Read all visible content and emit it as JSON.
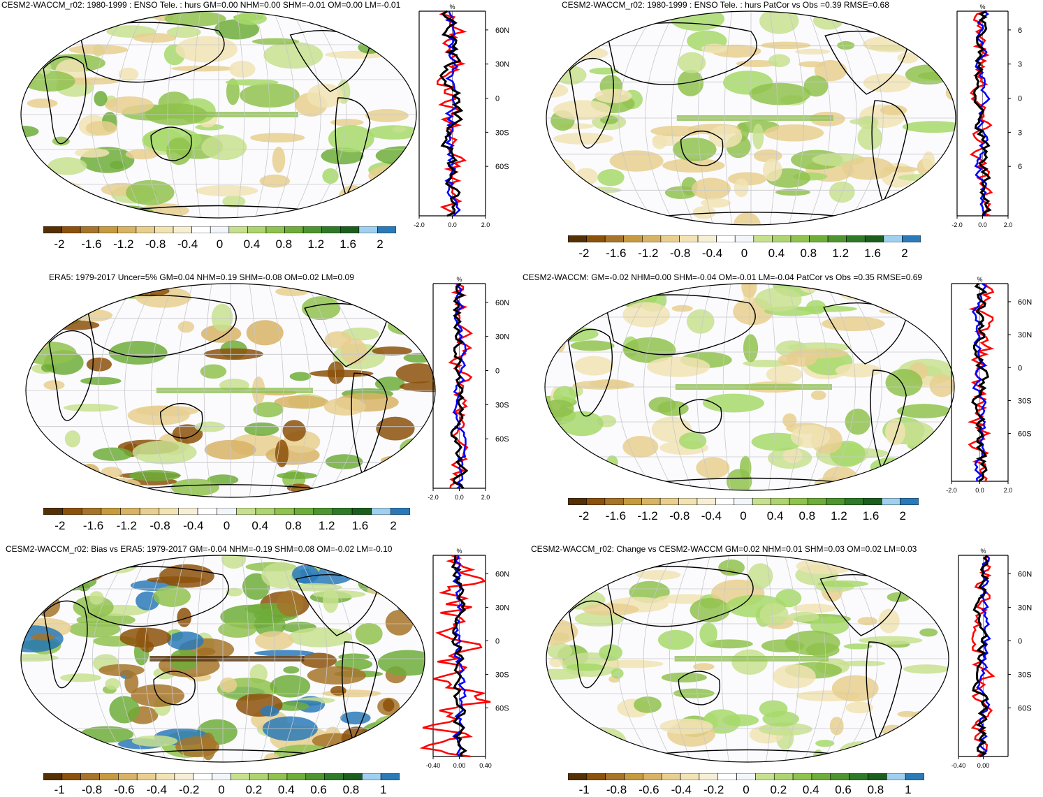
{
  "panels": [
    {
      "id": "p1",
      "title": "CESM2-WACCM_r02: 1980-1999 : ENSO Tele. : hurs GM=0.00 NHM=0.00 SHM=-0.01 OM=0.00 LM=-0.01",
      "zonal_unit": "%",
      "zonal_xticks": [
        "-2.0",
        "0.0",
        "2.0"
      ],
      "lat_ticks": [
        "60N",
        "30N",
        "0",
        "30S",
        "60S"
      ],
      "colorbar_labels": [
        "-2",
        "-1.6",
        "-1.2",
        "-0.8",
        "-0.4",
        "0",
        "0.4",
        "0.8",
        "1.2",
        "1.6",
        "2"
      ]
    },
    {
      "id": "p2",
      "title": "CESM2-WACCM_r02: 1980-1999 : ENSO Tele. : hurs PatCor vs Obs =0.39 RMSE=0.68",
      "zonal_unit": "%",
      "zonal_xticks": [
        "-2.0",
        "0.0",
        "2.0"
      ],
      "lat_ticks": [
        "6",
        "3",
        "0",
        "3",
        "6"
      ],
      "colorbar_labels": [
        "-2",
        "-1.6",
        "-1.2",
        "-0.8",
        "-0.4",
        "0",
        "0.4",
        "0.8",
        "1.2",
        "1.6",
        "2"
      ]
    },
    {
      "id": "p3",
      "title": "ERA5: 1979-2017 Uncer=5% GM=0.04 NHM=0.19 SHM=-0.08 OM=0.02 LM=0.09",
      "zonal_unit": "%",
      "zonal_xticks": [
        "-2.0",
        "0.0",
        "2.0"
      ],
      "lat_ticks": [
        "60N",
        "30N",
        "0",
        "30S",
        "60S"
      ],
      "colorbar_labels": [
        "-2",
        "-1.6",
        "-1.2",
        "-0.8",
        "-0.4",
        "0",
        "0.4",
        "0.8",
        "1.2",
        "1.6",
        "2"
      ]
    },
    {
      "id": "p4",
      "title": "CESM2-WACCM: GM=-0.02 NHM=0.00 SHM=-0.04 OM=-0.01 LM=-0.04 PatCor vs Obs =0.35 RMSE=0.69",
      "zonal_unit": "%",
      "zonal_xticks": [
        "-2.0",
        "0.0",
        "2.0"
      ],
      "lat_ticks": [
        "60N",
        "30N",
        "0",
        "30S",
        "60S"
      ],
      "colorbar_labels": [
        "-2",
        "-1.6",
        "-1.2",
        "-0.8",
        "-0.4",
        "0",
        "0.4",
        "0.8",
        "1.2",
        "1.6",
        "2"
      ]
    },
    {
      "id": "p5",
      "title": "CESM2-WACCM_r02: Bias vs ERA5: 1979-2017 GM=-0.04 NHM=-0.19 SHM=0.08 OM=-0.02 LM=-0.10",
      "zonal_unit": "%",
      "zonal_xticks": [
        "-0.40",
        "0.00",
        "0.40"
      ],
      "lat_ticks": [
        "60N",
        "30N",
        "0",
        "30S",
        "60S"
      ],
      "colorbar_labels": [
        "-1",
        "-0.8",
        "-0.6",
        "-0.4",
        "-0.2",
        "0",
        "0.2",
        "0.4",
        "0.6",
        "0.8",
        "1"
      ]
    },
    {
      "id": "p6",
      "title": "CESM2-WACCM_r02: Change vs CESM2-WACCM GM=0.02 NHM=0.01 SHM=0.03 OM=0.02 LM=0.03",
      "zonal_unit": "%",
      "zonal_xticks": [
        "-0.40",
        "0.00"
      ],
      "lat_ticks": [
        "60N",
        "30N",
        "0",
        "30S",
        "60S"
      ],
      "colorbar_labels": [
        "-1",
        "-0.8",
        "-0.6",
        "-0.4",
        "-0.2",
        "0",
        "0.2",
        "0.4",
        "0.6",
        "0.8",
        "1"
      ]
    }
  ],
  "colorbar_colors": [
    "#543005",
    "#8c510a",
    "#a6742a",
    "#c69a3f",
    "#d8b365",
    "#e8cf8f",
    "#f1e3b4",
    "#f6efd6",
    "#ffffff",
    "#f2f5fa",
    "#c7e08f",
    "#aed46f",
    "#8fc24e",
    "#6ead3a",
    "#4e9530",
    "#2f7a28",
    "#1c5e1e",
    "#9fd0ef",
    "#2a7ab8"
  ],
  "line_colors": {
    "red": "#ff0000",
    "blue": "#0000ff",
    "black": "#000000"
  }
}
